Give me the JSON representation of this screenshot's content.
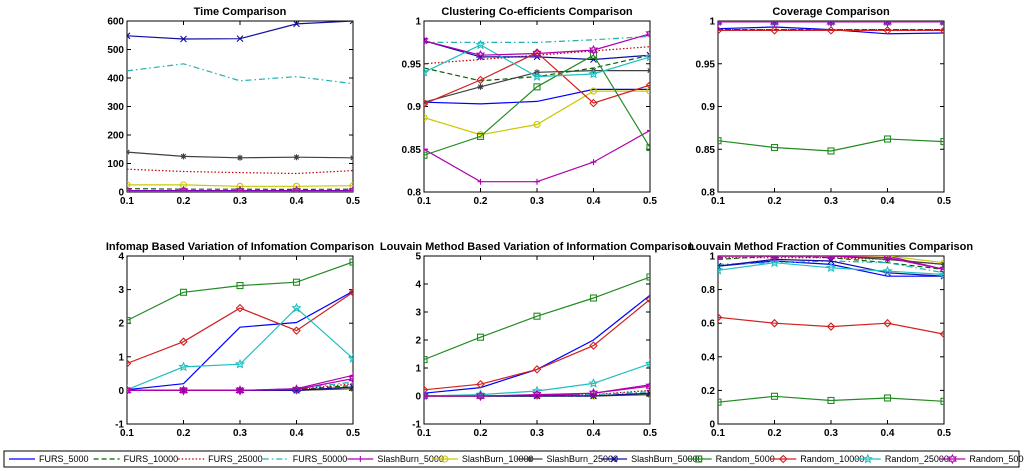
{
  "chart_data": {
    "x": [
      0.1,
      0.2,
      0.3,
      0.4,
      0.5
    ],
    "series_styles": [
      {
        "name": "FURS_5000",
        "color": "#0000ff",
        "dash": "solid",
        "marker": "none"
      },
      {
        "name": "FURS_10000",
        "color": "#006400",
        "dash": "dashed",
        "marker": "none"
      },
      {
        "name": "FURS_25000",
        "color": "#c00000",
        "dash": "dotted",
        "marker": "none"
      },
      {
        "name": "FURS_50000",
        "color": "#20b2b2",
        "dash": "dashdot",
        "marker": "none"
      },
      {
        "name": "SlashBurn_5000",
        "color": "#b000b0",
        "dash": "solid",
        "marker": "plus"
      },
      {
        "name": "SlashBurn_10000",
        "color": "#c8c800",
        "dash": "solid",
        "marker": "circle"
      },
      {
        "name": "SlashBurn_25000",
        "color": "#404040",
        "dash": "solid",
        "marker": "asterisk"
      },
      {
        "name": "SlashBurn_50000",
        "color": "#1010a0",
        "dash": "solid",
        "marker": "x"
      },
      {
        "name": "Random_5000",
        "color": "#228b22",
        "dash": "solid",
        "marker": "square"
      },
      {
        "name": "Random_10000",
        "color": "#d02020",
        "dash": "solid",
        "marker": "diamond"
      },
      {
        "name": "Random_25000",
        "color": "#20c0c0",
        "dash": "solid",
        "marker": "star"
      },
      {
        "name": "Random_50000",
        "color": "#b000b0",
        "dash": "solid",
        "marker": "hexagram"
      }
    ],
    "panels": [
      {
        "type": "line",
        "title": "Time Comparison",
        "ylim": [
          0,
          600
        ],
        "yticks": [
          "0",
          "100",
          "200",
          "300",
          "400",
          "500",
          "600"
        ],
        "ytick_values": [
          0,
          100,
          200,
          300,
          400,
          500,
          600
        ],
        "series": [
          {
            "name": "FURS_5000",
            "values": [
              5,
              5,
              5,
              5,
              5
            ]
          },
          {
            "name": "FURS_10000",
            "values": [
              12,
              10,
              10,
              9,
              10
            ]
          },
          {
            "name": "FURS_25000",
            "values": [
              80,
              72,
              68,
              65,
              75
            ]
          },
          {
            "name": "FURS_50000",
            "values": [
              425,
              450,
              390,
              405,
              380
            ]
          },
          {
            "name": "SlashBurn_5000",
            "values": [
              2,
              2,
              2,
              2,
              2
            ]
          },
          {
            "name": "SlashBurn_10000",
            "values": [
              25,
              25,
              20,
              20,
              22
            ]
          },
          {
            "name": "SlashBurn_25000",
            "values": [
              140,
              125,
              120,
              122,
              120
            ]
          },
          {
            "name": "SlashBurn_50000",
            "values": [
              548,
              537,
              538,
              590,
              600
            ]
          },
          {
            "name": "Random_5000",
            "values": [
              1,
              1,
              1,
              1,
              1
            ]
          },
          {
            "name": "Random_10000",
            "values": [
              2,
              2,
              2,
              2,
              2
            ]
          },
          {
            "name": "Random_25000",
            "values": [
              3,
              3,
              3,
              3,
              3
            ]
          },
          {
            "name": "Random_50000",
            "values": [
              4,
              4,
              4,
              4,
              4
            ]
          }
        ]
      },
      {
        "type": "line",
        "title": "Clustering Co-efficients Comparison",
        "ylim": [
          0.8,
          1.0
        ],
        "yticks": [
          "0.8",
          "0.85",
          "0.9",
          "0.95",
          "1"
        ],
        "ytick_values": [
          0.8,
          0.85,
          0.9,
          0.95,
          1.0
        ],
        "series": [
          {
            "name": "FURS_5000",
            "values": [
              0.905,
              0.903,
              0.906,
              0.92,
              0.92
            ]
          },
          {
            "name": "FURS_10000",
            "values": [
              0.945,
              0.93,
              0.935,
              0.945,
              0.96
            ]
          },
          {
            "name": "FURS_25000",
            "values": [
              0.95,
              0.955,
              0.96,
              0.965,
              0.97
            ]
          },
          {
            "name": "FURS_50000",
            "values": [
              0.975,
              0.975,
              0.975,
              0.978,
              0.982
            ]
          },
          {
            "name": "SlashBurn_5000",
            "values": [
              0.85,
              0.812,
              0.812,
              0.835,
              0.872
            ]
          },
          {
            "name": "SlashBurn_10000",
            "values": [
              0.887,
              0.867,
              0.879,
              0.918,
              0.918
            ]
          },
          {
            "name": "SlashBurn_25000",
            "values": [
              0.905,
              0.923,
              0.94,
              0.942,
              0.942
            ]
          },
          {
            "name": "SlashBurn_50000",
            "values": [
              0.977,
              0.958,
              0.958,
              0.955,
              0.96
            ]
          },
          {
            "name": "Random_5000",
            "values": [
              0.843,
              0.865,
              0.923,
              0.96,
              0.852
            ]
          },
          {
            "name": "Random_10000",
            "values": [
              0.903,
              0.931,
              0.963,
              0.904,
              0.925
            ]
          },
          {
            "name": "Random_25000",
            "values": [
              0.94,
              0.972,
              0.935,
              0.938,
              0.958
            ]
          },
          {
            "name": "Random_50000",
            "values": [
              0.977,
              0.96,
              0.962,
              0.966,
              0.985
            ]
          }
        ]
      },
      {
        "type": "line",
        "title": "Coverage Comparison",
        "ylim": [
          0.8,
          1.0
        ],
        "yticks": [
          "0.8",
          "0.85",
          "0.9",
          "0.95",
          "1"
        ],
        "ytick_values": [
          0.8,
          0.85,
          0.9,
          0.95,
          1.0
        ],
        "series": [
          {
            "name": "FURS_5000",
            "values": [
              0.991,
              0.993,
              0.99,
              0.985,
              0.986
            ]
          },
          {
            "name": "FURS_10000",
            "values": [
              0.99,
              0.99,
              0.99,
              0.99,
              0.99
            ]
          },
          {
            "name": "FURS_25000",
            "values": [
              0.99,
              0.99,
              0.99,
              0.99,
              0.99
            ]
          },
          {
            "name": "FURS_50000",
            "values": [
              0.999,
              0.999,
              0.999,
              0.999,
              0.999
            ]
          },
          {
            "name": "SlashBurn_5000",
            "values": [
              0.999,
              0.999,
              0.999,
              0.999,
              0.999
            ]
          },
          {
            "name": "SlashBurn_10000",
            "values": [
              0.999,
              0.999,
              0.999,
              0.999,
              0.999
            ]
          },
          {
            "name": "SlashBurn_25000",
            "values": [
              0.999,
              0.999,
              0.999,
              0.999,
              0.999
            ]
          },
          {
            "name": "SlashBurn_50000",
            "values": [
              0.999,
              0.999,
              0.999,
              0.999,
              0.999
            ]
          },
          {
            "name": "Random_5000",
            "values": [
              0.86,
              0.852,
              0.848,
              0.862,
              0.859
            ]
          },
          {
            "name": "Random_10000",
            "values": [
              0.989,
              0.989,
              0.989,
              0.989,
              0.989
            ]
          },
          {
            "name": "Random_25000",
            "values": [
              0.999,
              0.999,
              0.999,
              0.999,
              0.999
            ]
          },
          {
            "name": "Random_50000",
            "values": [
              0.999,
              0.999,
              0.999,
              0.999,
              0.999
            ]
          }
        ]
      },
      {
        "type": "line",
        "title": "Infomap Based Variation of Infomation Comparison",
        "ylim": [
          -1,
          4
        ],
        "yticks": [
          "-1",
          "0",
          "1",
          "2",
          "3",
          "4"
        ],
        "ytick_values": [
          -1,
          0,
          1,
          2,
          3,
          4
        ],
        "series": [
          {
            "name": "FURS_5000",
            "values": [
              0.02,
              0.2,
              1.88,
              2.02,
              2.95
            ]
          },
          {
            "name": "FURS_10000",
            "values": [
              0.0,
              0.0,
              0.0,
              0.02,
              0.15
            ]
          },
          {
            "name": "FURS_25000",
            "values": [
              0.0,
              0.0,
              0.0,
              0.02,
              0.2
            ]
          },
          {
            "name": "FURS_50000",
            "values": [
              0.0,
              0.0,
              0.0,
              0.05,
              0.25
            ]
          },
          {
            "name": "SlashBurn_5000",
            "values": [
              0.0,
              0.0,
              0.0,
              0.05,
              0.45
            ]
          },
          {
            "name": "SlashBurn_10000",
            "values": [
              0.0,
              0.0,
              0.0,
              0.0,
              0.05
            ]
          },
          {
            "name": "SlashBurn_25000",
            "values": [
              0.0,
              0.0,
              0.0,
              0.0,
              0.05
            ]
          },
          {
            "name": "SlashBurn_50000",
            "values": [
              0.0,
              0.0,
              0.0,
              0.0,
              0.1
            ]
          },
          {
            "name": "Random_5000",
            "values": [
              2.08,
              2.92,
              3.12,
              3.22,
              3.82
            ]
          },
          {
            "name": "Random_10000",
            "values": [
              0.8,
              1.45,
              2.45,
              1.78,
              2.92
            ]
          },
          {
            "name": "Random_25000",
            "values": [
              0.02,
              0.7,
              0.78,
              2.45,
              0.95
            ]
          },
          {
            "name": "Random_50000",
            "values": [
              0.0,
              0.0,
              0.0,
              0.03,
              0.35
            ]
          }
        ]
      },
      {
        "type": "line",
        "title": "Louvain Method Based Variation of Information Comparison",
        "ylim": [
          -1,
          5
        ],
        "yticks": [
          "-1",
          "0",
          "1",
          "2",
          "3",
          "4",
          "5"
        ],
        "ytick_values": [
          -1,
          0,
          1,
          2,
          3,
          4,
          5
        ],
        "series": [
          {
            "name": "FURS_5000",
            "values": [
              0.1,
              0.3,
              0.95,
              2.0,
              3.6
            ]
          },
          {
            "name": "FURS_10000",
            "values": [
              0.0,
              0.0,
              0.0,
              0.0,
              0.1
            ]
          },
          {
            "name": "FURS_25000",
            "values": [
              0.0,
              0.0,
              0.0,
              0.05,
              0.2
            ]
          },
          {
            "name": "FURS_50000",
            "values": [
              0.0,
              0.0,
              0.0,
              0.05,
              0.15
            ]
          },
          {
            "name": "SlashBurn_5000",
            "values": [
              0.0,
              0.0,
              0.0,
              0.1,
              0.4
            ]
          },
          {
            "name": "SlashBurn_10000",
            "values": [
              0.0,
              0.0,
              0.0,
              0.0,
              0.05
            ]
          },
          {
            "name": "SlashBurn_25000",
            "values": [
              0.0,
              0.0,
              0.0,
              0.0,
              0.05
            ]
          },
          {
            "name": "SlashBurn_50000",
            "values": [
              0.0,
              0.0,
              0.0,
              0.0,
              0.1
            ]
          },
          {
            "name": "Random_5000",
            "values": [
              1.3,
              2.1,
              2.85,
              3.5,
              4.25
            ]
          },
          {
            "name": "Random_10000",
            "values": [
              0.22,
              0.42,
              0.95,
              1.8,
              3.45
            ]
          },
          {
            "name": "Random_25000",
            "values": [
              0.0,
              0.05,
              0.18,
              0.45,
              1.15
            ]
          },
          {
            "name": "Random_50000",
            "values": [
              0.0,
              0.0,
              0.05,
              0.1,
              0.35
            ]
          }
        ]
      },
      {
        "type": "line",
        "title": "Louvain Method Fraction of Communities Comparison",
        "ylim": [
          0,
          1
        ],
        "yticks": [
          "0",
          "0.2",
          "0.4",
          "0.6",
          "0.8",
          "1"
        ],
        "ytick_values": [
          0,
          0.2,
          0.4,
          0.6,
          0.8,
          1.0
        ],
        "series": [
          {
            "name": "FURS_5000",
            "values": [
              0.94,
              0.97,
              0.95,
              0.88,
              0.88
            ]
          },
          {
            "name": "FURS_10000",
            "values": [
              0.98,
              1.0,
              0.99,
              0.96,
              0.92
            ]
          },
          {
            "name": "FURS_25000",
            "values": [
              0.99,
              0.99,
              0.99,
              0.98,
              0.95
            ]
          },
          {
            "name": "FURS_50000",
            "values": [
              0.95,
              0.96,
              0.97,
              0.96,
              0.9
            ]
          },
          {
            "name": "SlashBurn_5000",
            "values": [
              1.0,
              1.0,
              1.0,
              1.0,
              0.92
            ]
          },
          {
            "name": "SlashBurn_10000",
            "values": [
              1.0,
              1.0,
              1.0,
              1.0,
              0.96
            ]
          },
          {
            "name": "SlashBurn_25000",
            "values": [
              1.0,
              1.0,
              1.0,
              0.98,
              0.95
            ]
          },
          {
            "name": "SlashBurn_50000",
            "values": [
              0.94,
              0.98,
              0.97,
              0.9,
              0.88
            ]
          },
          {
            "name": "Random_5000",
            "values": [
              0.13,
              0.165,
              0.14,
              0.155,
              0.135
            ]
          },
          {
            "name": "Random_10000",
            "values": [
              0.635,
              0.6,
              0.58,
              0.6,
              0.535
            ]
          },
          {
            "name": "Random_25000",
            "values": [
              0.915,
              0.96,
              0.93,
              0.91,
              0.89
            ]
          },
          {
            "name": "Random_50000",
            "values": [
              1.0,
              1.0,
              1.0,
              0.99,
              0.92
            ]
          }
        ]
      }
    ],
    "xticks": [
      "0.1",
      "0.2",
      "0.3",
      "0.4",
      "0.5"
    ],
    "xlim": [
      0.1,
      0.5
    ],
    "grid": false,
    "legend_position": "bottom"
  }
}
